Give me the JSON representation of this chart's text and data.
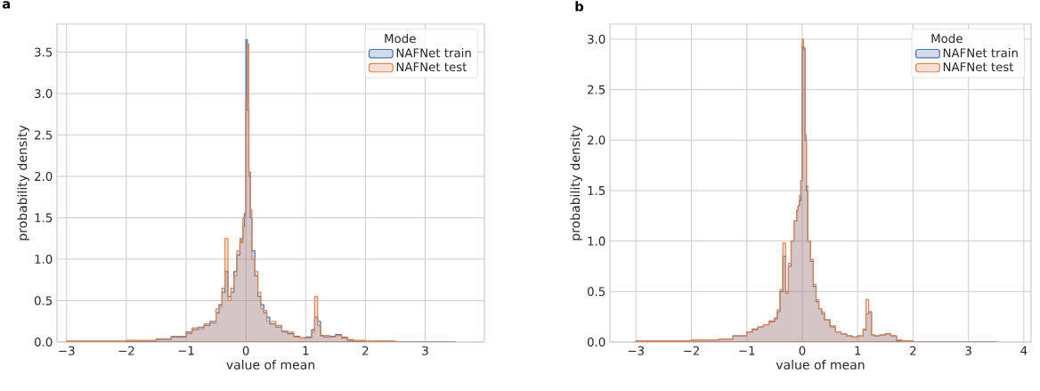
{
  "chart_data": [
    {
      "type": "histogram",
      "title": "a",
      "xlabel": "value of mean",
      "ylabel": "probability density",
      "legend_title": "Mode",
      "legend": "top right",
      "grid": true,
      "xlim": [
        -3.16,
        3.99
      ],
      "ylim": [
        0,
        3.84
      ],
      "xticks": [
        {
          "value": -3,
          "label": "−3"
        },
        {
          "value": -2,
          "label": "−2"
        },
        {
          "value": -1,
          "label": "−1"
        },
        0,
        1,
        2,
        3
      ],
      "yticks": [
        {
          "value": 0,
          "label": "0.0"
        },
        0.5,
        {
          "value": 1,
          "label": "1.0"
        },
        1.5,
        {
          "value": 2,
          "label": "2.0"
        },
        2.5,
        {
          "value": 3,
          "label": "3.0"
        },
        3.5
      ],
      "bins": [
        -3.0,
        -2.0,
        -1.5,
        -1.25,
        -1.0,
        -0.9,
        -0.8,
        -0.7,
        -0.6,
        -0.5,
        -0.45,
        -0.4,
        -0.35,
        -0.3,
        -0.25,
        -0.2,
        -0.15,
        -0.1,
        -0.075,
        -0.05,
        -0.025,
        0,
        0.025,
        0.05,
        0.075,
        0.1,
        0.15,
        0.2,
        0.25,
        0.3,
        0.35,
        0.4,
        0.5,
        0.6,
        0.7,
        0.8,
        0.9,
        1.0,
        1.1,
        1.15,
        1.2,
        1.25,
        1.3,
        1.4,
        1.5,
        1.6,
        1.7,
        1.8,
        2.0,
        2.5,
        3.5
      ],
      "series": [
        {
          "name": "NAFNet train",
          "color": "#4c72b0",
          "values": [
            0.01,
            0.01,
            0.03,
            0.06,
            0.12,
            0.15,
            0.18,
            0.2,
            0.25,
            0.35,
            0.45,
            0.6,
            0.85,
            0.55,
            0.6,
            0.85,
            1.05,
            1.2,
            1.25,
            1.4,
            1.55,
            3.65,
            2.8,
            2.05,
            1.5,
            1.1,
            0.8,
            0.55,
            0.45,
            0.35,
            0.3,
            0.22,
            0.18,
            0.13,
            0.1,
            0.07,
            0.05,
            0.06,
            0.15,
            0.3,
            0.25,
            0.08,
            0.06,
            0.07,
            0.09,
            0.05,
            0.02,
            0.01,
            0.01,
            0.0
          ]
        },
        {
          "name": "NAFNet test",
          "color": "#dd8452",
          "values": [
            0.01,
            0.02,
            0.04,
            0.07,
            0.1,
            0.17,
            0.16,
            0.22,
            0.23,
            0.4,
            0.42,
            0.65,
            1.25,
            0.5,
            0.65,
            0.8,
            1.1,
            1.25,
            1.2,
            1.5,
            1.5,
            2.9,
            3.6,
            2.0,
            1.6,
            1.0,
            0.85,
            0.6,
            0.4,
            0.38,
            0.25,
            0.25,
            0.2,
            0.12,
            0.12,
            0.06,
            0.05,
            0.05,
            0.12,
            0.55,
            0.2,
            0.07,
            0.08,
            0.06,
            0.08,
            0.06,
            0.03,
            0.02,
            0.01,
            0.0
          ]
        }
      ]
    },
    {
      "type": "histogram",
      "title": "b",
      "xlabel": "value of mean",
      "ylabel": "probability density",
      "legend_title": "Mode",
      "legend": "top right",
      "grid": true,
      "xlim": [
        -3.47,
        4.13
      ],
      "ylim": [
        0,
        3.15
      ],
      "xticks": [
        {
          "value": -3,
          "label": "−3"
        },
        {
          "value": -2,
          "label": "−2"
        },
        {
          "value": -1,
          "label": "−1"
        },
        0,
        1,
        2,
        3,
        4
      ],
      "yticks": [
        {
          "value": 0,
          "label": "0.0"
        },
        0.5,
        {
          "value": 1,
          "label": "1.0"
        },
        1.5,
        {
          "value": 2,
          "label": "2.0"
        },
        2.5,
        {
          "value": 3,
          "label": "3.0"
        }
      ],
      "bins": [
        -3.0,
        -2.0,
        -1.5,
        -1.25,
        -1.0,
        -0.9,
        -0.8,
        -0.7,
        -0.6,
        -0.5,
        -0.45,
        -0.4,
        -0.35,
        -0.3,
        -0.25,
        -0.2,
        -0.15,
        -0.1,
        -0.075,
        -0.05,
        -0.025,
        0,
        0.025,
        0.05,
        0.075,
        0.1,
        0.15,
        0.2,
        0.25,
        0.3,
        0.35,
        0.4,
        0.5,
        0.6,
        0.7,
        0.8,
        0.9,
        1.0,
        1.1,
        1.15,
        1.2,
        1.25,
        1.3,
        1.4,
        1.5,
        1.6,
        1.7,
        1.8,
        2.0,
        2.5,
        3.5
      ],
      "series": [
        {
          "name": "NAFNet train",
          "color": "#4c72b0",
          "values": [
            0.01,
            0.02,
            0.03,
            0.06,
            0.1,
            0.13,
            0.15,
            0.17,
            0.2,
            0.23,
            0.3,
            0.5,
            0.85,
            0.5,
            0.75,
            1.0,
            1.2,
            1.3,
            1.35,
            1.4,
            1.6,
            2.93,
            2.9,
            2.0,
            1.5,
            1.0,
            0.8,
            0.55,
            0.4,
            0.33,
            0.28,
            0.22,
            0.15,
            0.1,
            0.08,
            0.06,
            0.05,
            0.06,
            0.12,
            0.28,
            0.3,
            0.07,
            0.06,
            0.07,
            0.08,
            0.06,
            0.01,
            0.01,
            0.0,
            0.0
          ]
        },
        {
          "name": "NAFNet test",
          "color": "#dd8452",
          "values": [
            0.01,
            0.02,
            0.03,
            0.06,
            0.1,
            0.12,
            0.15,
            0.17,
            0.21,
            0.24,
            0.32,
            0.52,
            0.98,
            0.48,
            0.78,
            1.0,
            1.2,
            1.3,
            1.35,
            1.45,
            1.6,
            3.0,
            2.92,
            2.05,
            1.55,
            1.0,
            0.82,
            0.57,
            0.42,
            0.33,
            0.3,
            0.22,
            0.16,
            0.1,
            0.08,
            0.06,
            0.05,
            0.06,
            0.13,
            0.42,
            0.3,
            0.07,
            0.06,
            0.07,
            0.08,
            0.06,
            0.02,
            0.01,
            0.0,
            0.0
          ]
        }
      ]
    }
  ]
}
